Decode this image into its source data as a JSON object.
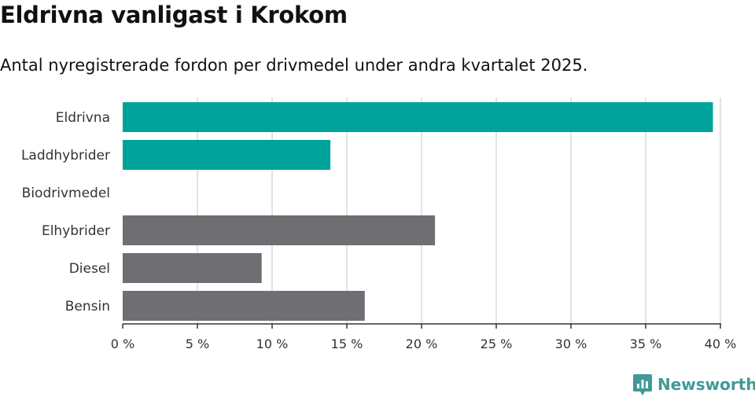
{
  "title": "Eldrivna vanligast i Krokom",
  "subtitle": "Antal nyregistrerade fordon per drivmedel under andra kvartalet 2025.",
  "brand": {
    "name": "Newsworthy",
    "icon": "newsworthy-logo-icon"
  },
  "colors": {
    "highlight": "#00a39a",
    "other": "#6e6e73",
    "grid": "#d9d9d9",
    "axis": "#333333",
    "brand": "#3f9a98"
  },
  "chart_data": {
    "type": "bar",
    "orientation": "horizontal",
    "categories": [
      "Eldrivna",
      "Laddhybrider",
      "Biodrivmedel",
      "Elhybrider",
      "Diesel",
      "Bensin"
    ],
    "values": [
      39.5,
      13.9,
      0,
      20.9,
      9.3,
      16.2
    ],
    "highlighted": [
      true,
      true,
      false,
      false,
      false,
      false
    ],
    "x_ticks": [
      "0 %",
      "5 %",
      "10 %",
      "15 %",
      "20 %",
      "25 %",
      "30 %",
      "35 %",
      "40 %"
    ],
    "xlim": [
      0,
      40
    ],
    "unit": "%",
    "grid": true
  }
}
